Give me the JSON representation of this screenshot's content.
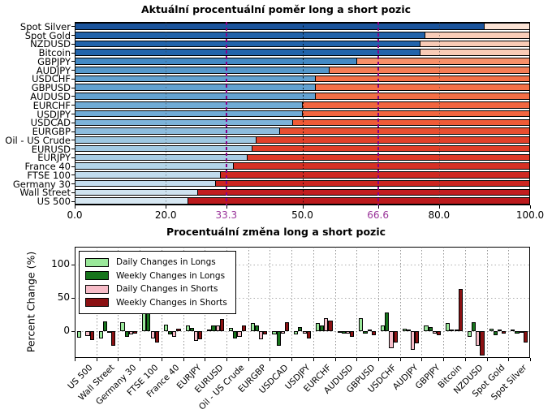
{
  "chart_data": [
    {
      "type": "bar",
      "orientation": "horizontal_stacked",
      "title": "Aktuální procentuální poměr long a short pozic",
      "xlim": [
        0,
        100
      ],
      "grid": "on",
      "xticks": [
        {
          "label": "0.0",
          "value": 0,
          "color": "#000000",
          "style": "none"
        },
        {
          "label": "20.0",
          "value": 20,
          "color": "#000000",
          "style": "dot-gray"
        },
        {
          "label": "33.3",
          "value": 33.3,
          "color": "#993399",
          "style": "dash-purple"
        },
        {
          "label": "50.0",
          "value": 50,
          "color": "#000000",
          "style": "dot-black"
        },
        {
          "label": "66.6",
          "value": 66.6,
          "color": "#993399",
          "style": "dash-purple"
        },
        {
          "label": "80.0",
          "value": 80,
          "color": "#000000",
          "style": "dot-gray"
        },
        {
          "label": "100.0",
          "value": 100,
          "color": "#000000",
          "style": "none"
        }
      ],
      "rows": [
        {
          "label": "Spot Silver",
          "long": 90,
          "short": 10,
          "long_color": "#1b549c",
          "short_color": "#fbe3d5"
        },
        {
          "label": "Spot Gold",
          "long": 77,
          "short": 23,
          "long_color": "#2162a9",
          "short_color": "#f9cdb9"
        },
        {
          "label": "NZDUSD",
          "long": 76,
          "short": 24,
          "long_color": "#2264ab",
          "short_color": "#f9cbb6"
        },
        {
          "label": "Bitcoin",
          "long": 76,
          "short": 24,
          "long_color": "#2264ab",
          "short_color": "#f9cbb6"
        },
        {
          "label": "GBPJPY",
          "long": 62,
          "short": 38,
          "long_color": "#4389c4",
          "short_color": "#f89069"
        },
        {
          "label": "AUDJPY",
          "long": 56,
          "short": 44,
          "long_color": "#5598cb",
          "short_color": "#f67d55"
        },
        {
          "label": "USDCHF",
          "long": 53,
          "short": 47,
          "long_color": "#61a1d0",
          "short_color": "#f47047"
        },
        {
          "label": "GBPUSD",
          "long": 53,
          "short": 47,
          "long_color": "#61a1d0",
          "short_color": "#f47047"
        },
        {
          "label": "AUDUSD",
          "long": 53,
          "short": 47,
          "long_color": "#63a2d1",
          "short_color": "#f36e45"
        },
        {
          "label": "EURCHF",
          "long": 50,
          "short": 50,
          "long_color": "#70abd5",
          "short_color": "#f26640"
        },
        {
          "label": "USDJPY",
          "long": 50,
          "short": 50,
          "long_color": "#70abd5",
          "short_color": "#f26640"
        },
        {
          "label": "USDCAD",
          "long": 48,
          "short": 52,
          "long_color": "#7db3d9",
          "short_color": "#ef5b37"
        },
        {
          "label": "EURGBP",
          "long": 45,
          "short": 55,
          "long_color": "#8dbcdd",
          "short_color": "#e94e30"
        },
        {
          "label": "Oil - US Crude",
          "long": 40,
          "short": 60,
          "long_color": "#9ec8e2",
          "short_color": "#e2412a"
        },
        {
          "label": "EURUSD",
          "long": 39,
          "short": 61,
          "long_color": "#a3cbe4",
          "short_color": "#e03e28"
        },
        {
          "label": "EURJPY",
          "long": 38,
          "short": 62,
          "long_color": "#a8cde5",
          "short_color": "#dd3a27"
        },
        {
          "label": "France 40",
          "long": 35,
          "short": 65,
          "long_color": "#b4d5e9",
          "short_color": "#d63125"
        },
        {
          "label": "FTSE 100",
          "long": 32,
          "short": 68,
          "long_color": "#c0dbed",
          "short_color": "#cf2922"
        },
        {
          "label": "Germany 30",
          "long": 31,
          "short": 69,
          "long_color": "#c4ddee",
          "short_color": "#cc2621"
        },
        {
          "label": "Wall Street",
          "long": 27,
          "short": 73,
          "long_color": "#cfe3f0",
          "short_color": "#c21d1f"
        },
        {
          "label": "US 500",
          "long": 25,
          "short": 75,
          "long_color": "#d6e7f2",
          "short_color": "#bb191c"
        }
      ]
    },
    {
      "type": "bar",
      "orientation": "vertical_grouped",
      "title": "Procentuální změna long a short pozic",
      "ylabel": "Percent Change (%)",
      "ylim": [
        -40,
        126
      ],
      "yticks": [
        0,
        50,
        100
      ],
      "grid": "on",
      "legend_position": "upper left",
      "series": [
        {
          "name": "Daily Changes in Longs",
          "color": "#9ae89a"
        },
        {
          "name": "Weekly Changes in Longs",
          "color": "#17741c"
        },
        {
          "name": "Daily Changes in Shorts",
          "color": "#f7bcc8"
        },
        {
          "name": "Weekly Changes in Shorts",
          "color": "#8b1113"
        }
      ],
      "categories": [
        "US 500",
        "Wall Street",
        "Germany 30",
        "FTSE 100",
        "France 40",
        "EURJPY",
        "EURUSD",
        "Oil - US Crude",
        "EURGBP",
        "USDCAD",
        "USDJPY",
        "EURCHF",
        "AUDUSD",
        "GBPUSD",
        "USDCHF",
        "AUDJPY",
        "GBPJPY",
        "Bitcoin",
        "NZDUSD",
        "Spot Gold",
        "Spot Silver"
      ],
      "values": [
        [
          -10,
          0,
          -7,
          -13
        ],
        [
          -11,
          15,
          -2,
          -22
        ],
        [
          13,
          -8,
          -5,
          -4
        ],
        [
          46,
          53,
          -11,
          -17
        ],
        [
          10,
          -5,
          -8,
          4
        ],
        [
          9,
          5,
          -15,
          -12
        ],
        [
          2,
          8,
          9,
          18
        ],
        [
          5,
          -11,
          -9,
          8
        ],
        [
          12,
          9,
          -12,
          -5
        ],
        [
          -5,
          -22,
          -3,
          14
        ],
        [
          -5,
          6,
          -3,
          -11
        ],
        [
          12,
          9,
          20,
          16
        ],
        [
          -2,
          -3,
          -4,
          -8
        ],
        [
          20,
          -4,
          3,
          -6
        ],
        [
          8,
          28,
          -25,
          -17
        ],
        [
          4,
          3,
          -28,
          -18
        ],
        [
          8,
          6,
          -4,
          -6
        ],
        [
          12,
          3,
          2,
          63
        ],
        [
          -9,
          14,
          -22,
          -36
        ],
        [
          4,
          -6,
          3,
          -4
        ],
        [
          3,
          -3,
          -2,
          -17
        ]
      ]
    }
  ]
}
